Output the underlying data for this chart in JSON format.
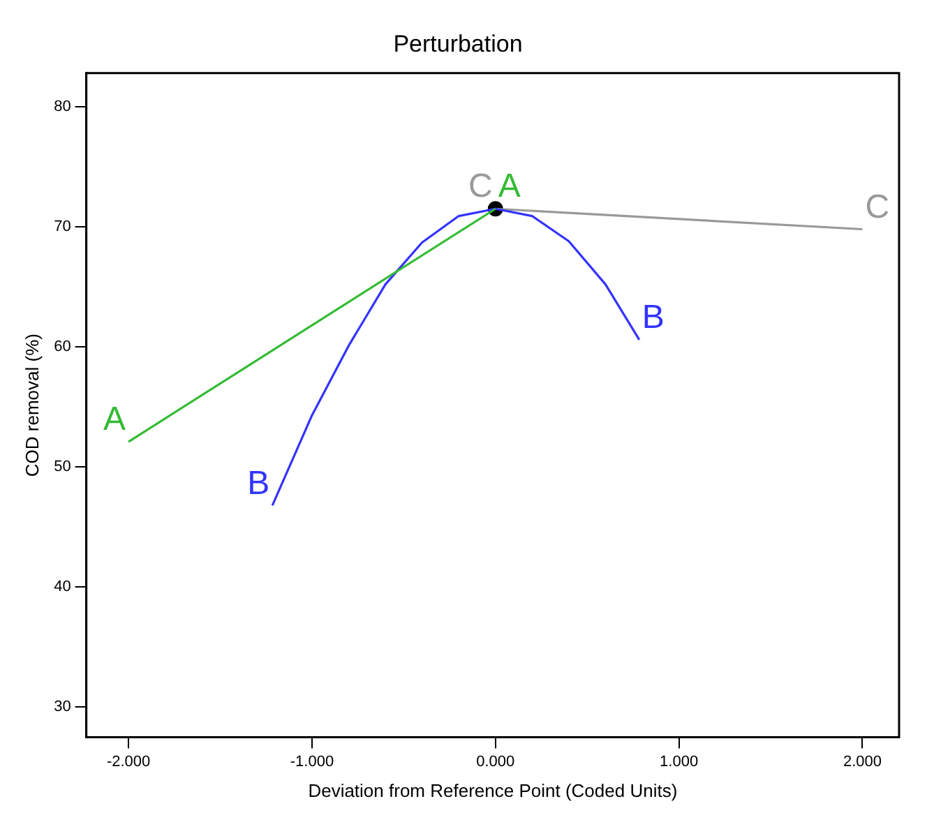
{
  "chart_data": {
    "type": "line",
    "title": "Perturbation",
    "xlabel": "Deviation from Reference Point (Coded Units)",
    "ylabel": "COD removal (%)",
    "xlim": [
      -2.23,
      2.2
    ],
    "xticks": [
      {
        "value": -2,
        "label": "-2.000"
      },
      {
        "value": -1,
        "label": "-1.000"
      },
      {
        "value": 0,
        "label": "0.000"
      },
      {
        "value": 1,
        "label": "1.000"
      },
      {
        "value": 2,
        "label": "2.000"
      }
    ],
    "ylim": [
      27.5,
      82.8
    ],
    "yticks": [
      30,
      40,
      50,
      60,
      70,
      80
    ],
    "grid": false,
    "legend": false,
    "marker": "none",
    "line_style": "solid",
    "series": [
      {
        "name": "A",
        "color": "#33bb33",
        "x": [
          -2,
          0
        ],
        "values": [
          52.1,
          71.5
        ]
      },
      {
        "name": "B",
        "color": "#3333ff",
        "x": [
          -1.216,
          -1.0,
          -0.8,
          -0.6,
          -0.4,
          -0.2,
          0,
          0.2,
          0.4,
          0.6,
          0.784
        ],
        "values": [
          46.8,
          54.3,
          60.1,
          65.2,
          68.7,
          70.9,
          71.5,
          70.9,
          68.8,
          65.2,
          60.6
        ]
      },
      {
        "name": "C",
        "color": "#999999",
        "x": [
          0,
          2
        ],
        "values": [
          71.5,
          69.8
        ]
      },
      {
        "type": "scatter",
        "marker": "circle",
        "color": "#000000",
        "x": [
          0
        ],
        "values": [
          71.5
        ]
      }
    ]
  }
}
